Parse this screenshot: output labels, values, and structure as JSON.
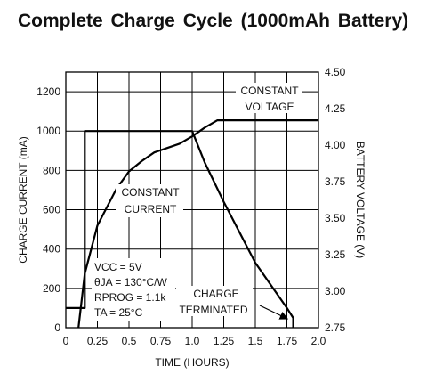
{
  "title": "Complete Charge Cycle (1000mAh Battery)",
  "chart_data": {
    "type": "line",
    "xlabel": "TIME (HOURS)",
    "ylabel": "CHARGE CURRENT (mA)",
    "y2label": "BATTERY VOLTAGE (V)",
    "xlim": [
      0,
      2.0
    ],
    "ylim": [
      0,
      1300
    ],
    "y2lim": [
      2.75,
      4.5
    ],
    "x_ticks": [
      0,
      0.25,
      0.5,
      0.75,
      1.0,
      1.25,
      1.5,
      1.75,
      2.0
    ],
    "x_tick_labels": [
      "0",
      "0.25",
      "0.5",
      "0.75",
      "1.0",
      "1.25",
      "1.5",
      "1.75",
      "2.0"
    ],
    "y_ticks": [
      0,
      200,
      400,
      600,
      800,
      1000,
      1200
    ],
    "y_tick_labels": [
      "0",
      "200",
      "400",
      "600",
      "800",
      "1000",
      "1200"
    ],
    "y2_ticks": [
      2.75,
      3.0,
      3.25,
      3.5,
      3.75,
      4.0,
      4.25,
      4.5
    ],
    "y2_tick_labels": [
      "2.75",
      "3.00",
      "3.25",
      "3.50",
      "3.75",
      "4.00",
      "4.25",
      "4.50"
    ],
    "grid": true,
    "series": [
      {
        "axis": "left",
        "x": [
          0,
          0.15,
          0.15,
          0.25,
          0.5,
          0.75,
          0.9,
          1.0,
          1.1,
          1.25,
          1.5,
          1.75,
          1.8,
          1.8
        ],
        "y": [
          100,
          100,
          1000,
          1000,
          1000,
          1000,
          1000,
          1000,
          840,
          640,
          330,
          100,
          50,
          0
        ]
      },
      {
        "axis": "right",
        "x": [
          0.1,
          0.15,
          0.25,
          0.4,
          0.5,
          0.6,
          0.7,
          0.8,
          0.9,
          1.0,
          1.1,
          1.2,
          1.25,
          1.5,
          1.75,
          2.0
        ],
        "y": [
          2.75,
          3.12,
          3.45,
          3.7,
          3.82,
          3.89,
          3.95,
          3.98,
          4.01,
          4.06,
          4.12,
          4.17,
          4.17,
          4.17,
          4.17,
          4.17
        ]
      }
    ],
    "annotations": [
      {
        "id": "cv",
        "lines": [
          "CONSTANT",
          "VOLTAGE"
        ]
      },
      {
        "id": "cc",
        "lines": [
          "CONSTANT",
          "CURRENT"
        ]
      },
      {
        "id": "cond",
        "lines": [
          "VCC = 5V",
          "θJA = 130°C/W",
          "RPROG = 1.1k",
          "TA = 25°C"
        ]
      },
      {
        "id": "term",
        "lines": [
          "CHARGE",
          "TERMINATED"
        ]
      }
    ]
  }
}
